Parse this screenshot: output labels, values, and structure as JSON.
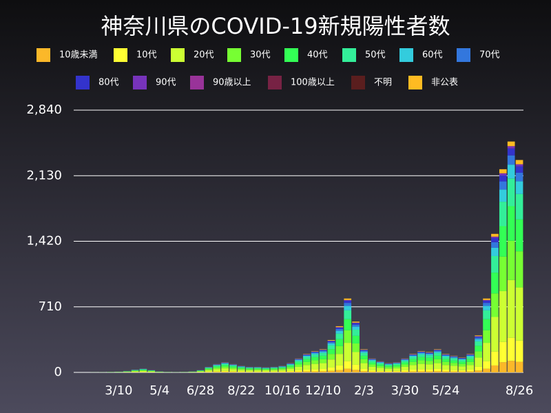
{
  "chart_data": {
    "type": "stacked_bar",
    "title": "神奈川県のCOVID-19新規陽性者数",
    "categories": [
      null,
      null,
      null,
      null,
      null,
      "3/10",
      null,
      null,
      null,
      null,
      "5/4",
      null,
      null,
      null,
      null,
      "6/28",
      null,
      null,
      null,
      null,
      "8/22",
      null,
      null,
      null,
      null,
      "10/16",
      null,
      null,
      null,
      null,
      "12/10",
      null,
      null,
      null,
      null,
      "2/3",
      null,
      null,
      null,
      null,
      "3/30",
      null,
      null,
      null,
      null,
      "5/24",
      null,
      null,
      null,
      null,
      null,
      null,
      null,
      null,
      "8/26"
    ],
    "ylim": [
      0,
      2840
    ],
    "yticks": [
      0,
      {
        "value": 710,
        "label": "710"
      },
      {
        "value": 1420,
        "label": "1,420"
      },
      {
        "value": 2130,
        "label": "2,130"
      },
      {
        "value": 2840,
        "label": "2,840"
      }
    ],
    "grid": true,
    "series": [
      {
        "name": "10歳未満",
        "color": "#fbb829",
        "values": [
          0,
          0,
          0,
          0.1,
          0.3,
          0.4,
          0.8,
          1.5,
          2,
          1.3,
          0.5,
          0.3,
          0.2,
          0.3,
          0.5,
          1.3,
          3,
          4.5,
          5.5,
          4.5,
          3.5,
          3,
          3,
          2.8,
          3,
          3.5,
          5,
          7.5,
          10,
          11.5,
          12.5,
          17.5,
          25,
          40,
          27.5,
          12.5,
          7.5,
          6,
          5,
          5.5,
          7.5,
          10,
          11.5,
          11,
          12.5,
          10,
          9,
          8,
          10,
          20,
          40,
          75,
          110,
          125,
          115
        ]
      },
      {
        "name": "10代",
        "color": "#ffff33",
        "values": [
          0,
          0,
          0.1,
          0.2,
          0.5,
          0.8,
          1.5,
          3,
          4,
          2.5,
          1,
          0.5,
          0.3,
          0.5,
          1,
          2.5,
          6,
          9,
          11,
          9,
          7,
          6,
          6,
          5.5,
          6,
          7,
          10,
          15,
          20,
          23,
          25,
          35,
          50,
          80,
          55,
          25,
          15,
          12,
          10,
          11,
          15,
          20,
          23,
          22,
          25,
          20,
          18,
          16,
          20,
          40,
          80,
          150,
          220,
          250,
          230
        ]
      },
      {
        "name": "20代",
        "color": "#ccff33",
        "values": [
          0,
          0,
          0.3,
          0.5,
          1.3,
          2,
          3.8,
          7.5,
          10,
          6.3,
          2.5,
          1.3,
          0.8,
          1.3,
          2.5,
          6.3,
          15,
          22.5,
          27.5,
          22.5,
          17.5,
          15,
          15,
          13.8,
          15,
          17.5,
          25,
          37.5,
          50,
          57.5,
          62.5,
          87.5,
          125,
          200,
          137.5,
          62.5,
          37.5,
          30,
          25,
          27.5,
          37.5,
          50,
          57.5,
          55,
          62.5,
          50,
          45,
          40,
          50,
          100,
          200,
          375,
          550,
          625,
          575
        ]
      },
      {
        "name": "30代",
        "color": "#77ff33",
        "values": [
          0,
          0,
          0.2,
          0.3,
          0.9,
          1.4,
          2.6,
          5.1,
          6.8,
          4.3,
          1.7,
          0.9,
          0.5,
          0.9,
          1.7,
          4.3,
          10.2,
          15.3,
          18.7,
          15.3,
          11.9,
          10.2,
          10.2,
          9.4,
          10.2,
          11.9,
          17,
          25.5,
          34,
          39.1,
          42.5,
          59.5,
          85,
          136,
          93.5,
          42.5,
          25.5,
          20.4,
          17,
          18.7,
          25.5,
          34,
          39.1,
          37.4,
          42.5,
          34,
          30.6,
          27.2,
          34,
          68,
          136,
          255,
          374,
          425,
          391
        ]
      },
      {
        "name": "40代",
        "color": "#33ff55",
        "values": [
          0,
          0,
          0.2,
          0.3,
          0.8,
          1.2,
          2.3,
          4.5,
          6,
          3.8,
          1.5,
          0.8,
          0.5,
          0.8,
          1.5,
          3.8,
          9,
          13.5,
          16.5,
          13.5,
          10.5,
          9,
          9,
          8.3,
          9,
          10.5,
          15,
          22.5,
          30,
          34.5,
          37.5,
          52.5,
          75,
          120,
          82.5,
          37.5,
          22.5,
          18,
          15,
          16.5,
          22.5,
          30,
          34.5,
          33,
          37.5,
          30,
          27,
          24,
          30,
          60,
          120,
          225,
          330,
          375,
          345
        ]
      },
      {
        "name": "50代",
        "color": "#33ee99",
        "values": [
          0,
          0,
          0.1,
          0.2,
          0.6,
          1,
          1.8,
          3.6,
          4.8,
          3,
          1.2,
          0.6,
          0.4,
          0.6,
          1.2,
          3,
          7.2,
          10.8,
          13.2,
          10.8,
          8.4,
          7.2,
          7.2,
          6.6,
          7.2,
          8.4,
          12,
          18,
          24,
          27.6,
          30,
          42,
          60,
          96,
          66,
          30,
          18,
          14.4,
          12,
          13.2,
          18,
          24,
          27.6,
          26.4,
          30,
          24,
          21.6,
          19.2,
          24,
          48,
          96,
          180,
          264,
          300,
          276
        ]
      },
      {
        "name": "60代",
        "color": "#33ccdd",
        "values": [
          0,
          0,
          0.1,
          0.1,
          0.3,
          0.5,
          0.9,
          1.8,
          2.4,
          1.5,
          0.6,
          0.3,
          0.2,
          0.3,
          0.6,
          1.5,
          3.6,
          5.4,
          6.6,
          5.4,
          4.2,
          3.6,
          3.6,
          3.3,
          3.6,
          4.2,
          6,
          9,
          12,
          13.8,
          15,
          21,
          30,
          48,
          33,
          15,
          9,
          7.2,
          6,
          6.6,
          9,
          12,
          13.8,
          13.2,
          15,
          12,
          10.8,
          9.6,
          12,
          24,
          48,
          90,
          132,
          150,
          138
        ]
      },
      {
        "name": "70代",
        "color": "#3377dd",
        "values": [
          0,
          0,
          0,
          0.1,
          0.2,
          0.3,
          0.6,
          1.2,
          1.6,
          1,
          0.4,
          0.2,
          0.1,
          0.2,
          0.4,
          1,
          2.4,
          3.6,
          4.4,
          3.6,
          2.8,
          2.4,
          2.4,
          2.2,
          2.4,
          2.8,
          4,
          6,
          8,
          9.2,
          10,
          14,
          20,
          32,
          22,
          10,
          6,
          4.8,
          4,
          4.4,
          6,
          8,
          9.2,
          8.8,
          10,
          8,
          7.2,
          6.4,
          8,
          16,
          32,
          60,
          88,
          100,
          92
        ]
      },
      {
        "name": "80代",
        "color": "#3333cc",
        "values": [
          0,
          0,
          0,
          0.1,
          0.2,
          0.2,
          0.5,
          0.9,
          1.2,
          0.8,
          0.3,
          0.2,
          0.1,
          0.2,
          0.3,
          0.8,
          1.8,
          2.7,
          3.3,
          2.7,
          2.1,
          1.8,
          1.8,
          1.7,
          1.8,
          2.1,
          3,
          4.5,
          6,
          6.9,
          7.5,
          10.5,
          15,
          24,
          16.5,
          7.5,
          4.5,
          3.6,
          3,
          3.3,
          4.5,
          6,
          6.9,
          6.6,
          7.5,
          6,
          5.4,
          4.8,
          6,
          12,
          24,
          45,
          66,
          75,
          69
        ]
      },
      {
        "name": "90代",
        "color": "#7733bb",
        "values": [
          0,
          0,
          0,
          0,
          0.1,
          0.1,
          0.2,
          0.3,
          0.4,
          0.3,
          0.1,
          0.1,
          0,
          0.1,
          0.1,
          0.3,
          0.6,
          0.9,
          1.1,
          0.9,
          0.7,
          0.6,
          0.6,
          0.6,
          0.6,
          0.7,
          1,
          1.5,
          2,
          2.3,
          2.5,
          3.5,
          5,
          8,
          5.5,
          2.5,
          1.5,
          1.2,
          1,
          1.1,
          1.5,
          2,
          2.3,
          2.2,
          2.5,
          2,
          1.8,
          1.6,
          2,
          4,
          8,
          15,
          22,
          25,
          23
        ]
      },
      {
        "name": "90歳以上",
        "color": "#993399",
        "values": [
          0,
          0,
          0,
          0,
          0,
          0,
          0,
          0,
          0,
          0,
          0,
          0,
          0,
          0,
          0,
          0,
          0,
          0,
          0,
          0,
          0,
          0,
          0,
          0,
          0,
          0,
          0,
          0,
          0,
          0,
          0,
          0,
          0,
          0,
          0,
          0,
          0,
          0,
          0,
          0,
          0,
          0,
          0,
          0,
          0,
          0,
          0,
          0,
          0,
          0,
          0,
          0,
          0,
          0,
          0
        ]
      },
      {
        "name": "100歳以上",
        "color": "#772244",
        "values": [
          0,
          0,
          0,
          0,
          0,
          0,
          0,
          0,
          0,
          0,
          0,
          0,
          0,
          0,
          0,
          0,
          0,
          0,
          0,
          0,
          0,
          0,
          0,
          0,
          0,
          0,
          0,
          0,
          0,
          0,
          0,
          0,
          0,
          0,
          0,
          0,
          0,
          0,
          0,
          0,
          0,
          0,
          0,
          0,
          0,
          0,
          0,
          0,
          0,
          0,
          0,
          0,
          0,
          0,
          0
        ]
      },
      {
        "name": "不明",
        "color": "#5a1e1e",
        "values": [
          0,
          0,
          0,
          0,
          0,
          0,
          0,
          0,
          0,
          0,
          0,
          0,
          0,
          0,
          0,
          0,
          0,
          0,
          0,
          0,
          0,
          0,
          0,
          0,
          0,
          0,
          0,
          0,
          0,
          0,
          0,
          0,
          0,
          0,
          0,
          0,
          0,
          0,
          0,
          0,
          0,
          0,
          0,
          0,
          0,
          0,
          0,
          0,
          0,
          0,
          0,
          0,
          0,
          0,
          0
        ]
      },
      {
        "name": "非公表",
        "color": "#ffbb22",
        "values": [
          0,
          0,
          0,
          0,
          0.1,
          0.2,
          0.3,
          0.6,
          0.8,
          0.5,
          0.2,
          0.1,
          0.1,
          0.1,
          0.2,
          0.5,
          1.2,
          1.8,
          2.2,
          1.8,
          1.4,
          1.2,
          1.2,
          1.1,
          1.2,
          1.4,
          2,
          3,
          4,
          4.6,
          5,
          7,
          10,
          16,
          11,
          5,
          3,
          2.4,
          2,
          2.2,
          3,
          4,
          4.6,
          4.4,
          5,
          4,
          3.6,
          3.2,
          4,
          8,
          16,
          30,
          44,
          50,
          46
        ]
      }
    ]
  }
}
